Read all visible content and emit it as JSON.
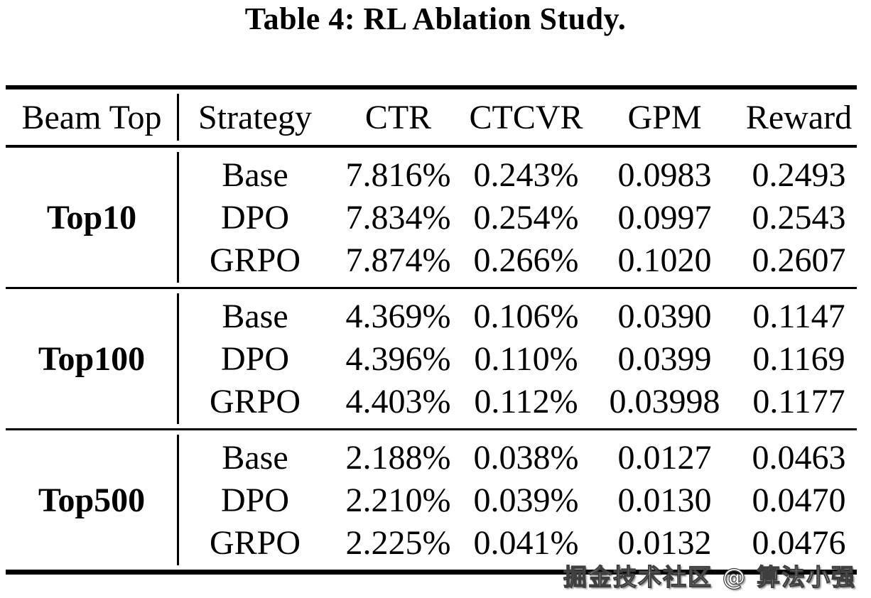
{
  "title": "Table 4: RL Ablation Study.",
  "watermark": "掘金技术社区 @ 算法小强",
  "colors": {
    "background": "#ffffff",
    "text": "#000000",
    "rule": "#000000",
    "watermark_fill": "#ffffff",
    "watermark_outline": "#3f3f3f"
  },
  "table": {
    "columns": [
      "Beam Top",
      "Strategy",
      "CTR",
      "CTCVR",
      "GPM",
      "Reward"
    ],
    "groups": [
      {
        "label": "Top10",
        "rows": [
          {
            "strategy": "Base",
            "ctr": "7.816%",
            "ctcvr": "0.243%",
            "gpm": "0.0983",
            "reward": "0.2493"
          },
          {
            "strategy": "DPO",
            "ctr": "7.834%",
            "ctcvr": "0.254%",
            "gpm": "0.0997",
            "reward": "0.2543"
          },
          {
            "strategy": "GRPO",
            "ctr": "7.874%",
            "ctcvr": "0.266%",
            "gpm": "0.1020",
            "reward": "0.2607"
          }
        ]
      },
      {
        "label": "Top100",
        "rows": [
          {
            "strategy": "Base",
            "ctr": "4.369%",
            "ctcvr": "0.106%",
            "gpm": "0.0390",
            "reward": "0.1147"
          },
          {
            "strategy": "DPO",
            "ctr": "4.396%",
            "ctcvr": "0.110%",
            "gpm": "0.0399",
            "reward": "0.1169"
          },
          {
            "strategy": "GRPO",
            "ctr": "4.403%",
            "ctcvr": "0.112%",
            "gpm": "0.03998",
            "reward": "0.1177"
          }
        ]
      },
      {
        "label": "Top500",
        "rows": [
          {
            "strategy": "Base",
            "ctr": "2.188%",
            "ctcvr": "0.038%",
            "gpm": "0.0127",
            "reward": "0.0463"
          },
          {
            "strategy": "DPO",
            "ctr": "2.210%",
            "ctcvr": "0.039%",
            "gpm": "0.0130",
            "reward": "0.0470"
          },
          {
            "strategy": "GRPO",
            "ctr": "2.225%",
            "ctcvr": "0.041%",
            "gpm": "0.0132",
            "reward": "0.0476"
          }
        ]
      }
    ]
  }
}
